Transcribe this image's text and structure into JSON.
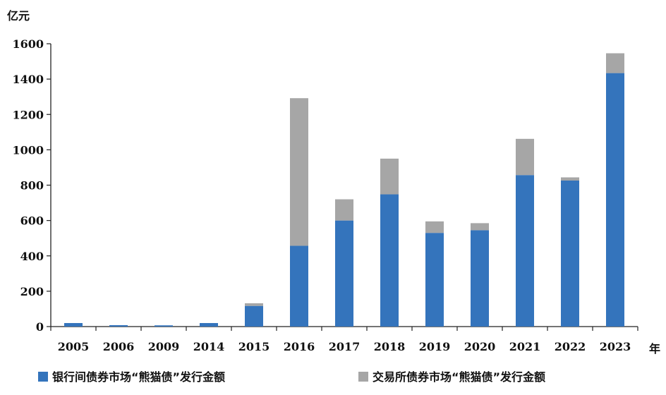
{
  "chart_data": {
    "type": "bar",
    "stacked": true,
    "ylabel": "亿元",
    "xlabel": "年",
    "ylim": [
      0,
      1600
    ],
    "yticks": [
      0,
      200,
      400,
      600,
      800,
      1000,
      1200,
      1400,
      1600
    ],
    "categories": [
      "2005",
      "2006",
      "2009",
      "2014",
      "2015",
      "2016",
      "2017",
      "2018",
      "2019",
      "2020",
      "2021",
      "2022",
      "2023"
    ],
    "series": [
      {
        "name": "银行间债券市场“熊猫债”发行金额",
        "color": "#3474bc",
        "values": [
          20,
          8,
          7,
          20,
          117,
          457,
          600,
          748,
          530,
          545,
          857,
          826,
          1434
        ]
      },
      {
        "name": "交易所债券市场“熊猫债”发行金额",
        "color": "#a6a6a6",
        "values": [
          0,
          0,
          0,
          0,
          15,
          835,
          120,
          202,
          65,
          40,
          205,
          18,
          112
        ]
      }
    ],
    "grid": false,
    "legend_position": "bottom"
  }
}
